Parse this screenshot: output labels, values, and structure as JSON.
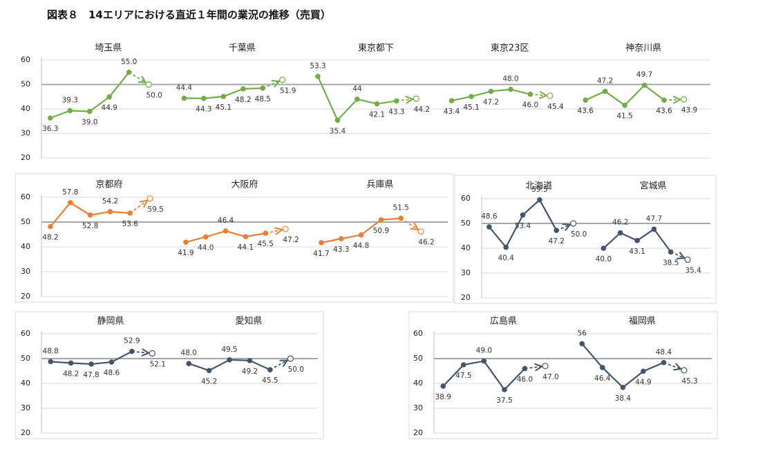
{
  "title": "図表８　14エリアにおける直近１年間の業況の推移（売買）",
  "chart_data": [
    {
      "type": "line",
      "ylim": [
        20,
        60
      ],
      "yticks": [
        20,
        30,
        40,
        50,
        60
      ],
      "ref_line": 50,
      "grid": true,
      "color": "#70ad47",
      "series": [
        {
          "name": "埼玉県",
          "values": [
            36.3,
            39.3,
            39.0,
            44.9,
            55.0,
            50.0
          ],
          "value_labels": [
            "36.3",
            "39.3",
            "39.0",
            "44.9",
            "55.0",
            "50.0"
          ]
        },
        {
          "name": "千葉県",
          "values": [
            44.4,
            44.3,
            45.1,
            48.2,
            48.5,
            51.9
          ]
        },
        {
          "name": "東京都下",
          "values": [
            53.3,
            35.4,
            44.0,
            42.1,
            43.3,
            44.2
          ]
        },
        {
          "name": "東京23区",
          "values": [
            43.4,
            45.1,
            47.2,
            48.0,
            46.0,
            45.4
          ],
          "value_labels": [
            "43.4",
            "45.1",
            "47.2",
            "48.0",
            "46.0",
            "45.4"
          ]
        },
        {
          "name": "神奈川県",
          "values": [
            43.6,
            47.2,
            41.5,
            49.7,
            43.6,
            43.9
          ]
        }
      ]
    },
    {
      "type": "line",
      "ylim": [
        20,
        60
      ],
      "yticks": [
        20,
        30,
        40,
        50,
        60
      ],
      "ref_line": 50,
      "grid": true,
      "color": "#ed7d31",
      "series": [
        {
          "name": "京都府",
          "values": [
            48.2,
            57.8,
            52.8,
            54.2,
            53.6,
            59.5
          ]
        },
        {
          "name": "大阪府",
          "values": [
            41.9,
            44.0,
            46.4,
            44.1,
            45.5,
            47.2
          ],
          "value_labels": [
            "41.9",
            "44.0",
            "46.4",
            "44.1",
            "45.5",
            "47.2"
          ]
        },
        {
          "name": "兵庫県",
          "values": [
            41.7,
            43.3,
            44.8,
            50.9,
            51.5,
            46.2
          ]
        }
      ]
    },
    {
      "type": "line",
      "ylim": [
        20,
        60
      ],
      "yticks": [
        20,
        30,
        40,
        50,
        60
      ],
      "ref_line": 50,
      "grid": true,
      "color": "#44546a",
      "series": [
        {
          "name": "北海道",
          "values": [
            48.6,
            40.4,
            53.4,
            59.5,
            47.2,
            50.0
          ],
          "value_labels": [
            "48.6",
            "40.4",
            "53.4",
            "59.5",
            "47.2",
            "50.0"
          ]
        },
        {
          "name": "宮城県",
          "values": [
            40.0,
            46.2,
            43.1,
            47.7,
            38.5,
            35.4
          ],
          "value_labels": [
            "40.0",
            "46.2",
            "43.1",
            "47.7",
            "38.5",
            "35.4"
          ]
        }
      ]
    },
    {
      "type": "line",
      "ylim": [
        20,
        60
      ],
      "yticks": [
        20,
        30,
        40,
        50,
        60
      ],
      "ref_line": 50,
      "grid": true,
      "color": "#44546a",
      "series": [
        {
          "name": "静岡県",
          "values": [
            48.8,
            48.2,
            47.8,
            48.6,
            52.9,
            52.1
          ]
        },
        {
          "name": "愛知県",
          "values": [
            48.0,
            45.2,
            49.5,
            49.2,
            45.5,
            50.0
          ],
          "value_labels": [
            "48.0",
            "45.2",
            "49.5",
            "49.2",
            "45.5",
            "50.0"
          ]
        }
      ]
    },
    {
      "type": "line",
      "ylim": [
        20,
        60
      ],
      "yticks": [
        20,
        30,
        40,
        50,
        60
      ],
      "ref_line": 50,
      "grid": true,
      "color": "#44546a",
      "series": [
        {
          "name": "広島県",
          "values": [
            38.9,
            47.5,
            49.0,
            37.5,
            46.0,
            47.0
          ],
          "value_labels": [
            "38.9",
            "47.5",
            "49.0",
            "37.5",
            "46.0",
            "47.0"
          ]
        },
        {
          "name": "福岡県",
          "values": [
            56.0,
            46.4,
            38.4,
            44.9,
            48.4,
            45.3
          ]
        }
      ]
    }
  ]
}
